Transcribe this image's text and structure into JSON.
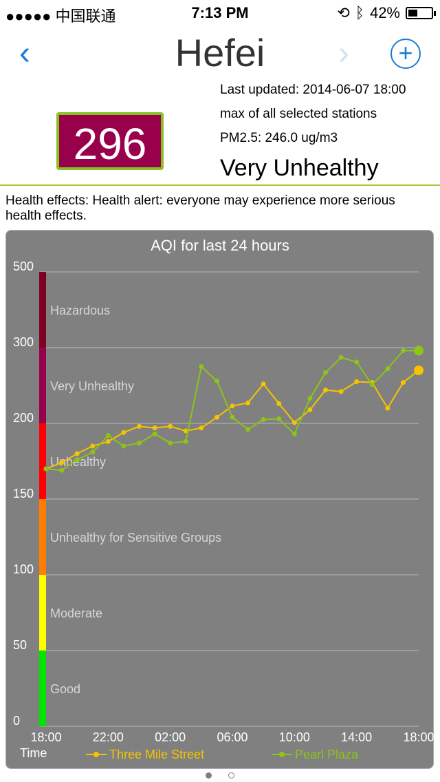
{
  "status_bar": {
    "carrier": "●●●●● 中国联通",
    "time": "7:13 PM",
    "battery": "42%",
    "battery_level": 0.42
  },
  "nav": {
    "back_icon": "chevron-left-icon",
    "title": "Hefei",
    "next_icon": "chevron-right-icon",
    "add_icon": "plus-circle-icon"
  },
  "summary": {
    "aqi": "296",
    "aqi_color": "#99004c",
    "last_updated": "Last updated: 2014-06-07 18:00",
    "station_note": "max of all selected stations",
    "pm25": "PM2.5: 246.0 ug/m3",
    "level": "Very Unhealthy"
  },
  "health": "Health effects: Health alert: everyone may experience more serious health effects.",
  "chart_data": {
    "type": "line",
    "title": "AQI for last 24 hours",
    "xlabel": "Time",
    "x_tick_labels": [
      "18:00",
      "22:00",
      "02:00",
      "06:00",
      "10:00",
      "14:00",
      "18:00"
    ],
    "y_tick_labels": [
      "0",
      "50",
      "100",
      "150",
      "200",
      "300",
      "500"
    ],
    "bands": [
      {
        "label": "Good",
        "from": 0,
        "to": 50,
        "color": "#00e400"
      },
      {
        "label": "Moderate",
        "from": 50,
        "to": 100,
        "color": "#ffff00"
      },
      {
        "label": "Unhealthy for Sensitive Groups",
        "from": 100,
        "to": 150,
        "color": "#ff7e00"
      },
      {
        "label": "Unhealthy",
        "from": 150,
        "to": 200,
        "color": "#ff0000"
      },
      {
        "label": "Very Unhealthy",
        "from": 200,
        "to": 300,
        "color": "#99004c"
      },
      {
        "label": "Hazardous",
        "from": 300,
        "to": 500,
        "color": "#7e0023"
      }
    ],
    "hours": 24,
    "series": [
      {
        "name": "Three Mile Street",
        "color": "#f5c400",
        "values": [
          170,
          174,
          180,
          185,
          188,
          194,
          198,
          197,
          198,
          195,
          197,
          208,
          223,
          227,
          252,
          226,
          201,
          218,
          244,
          242,
          255,
          254,
          220,
          254,
          270
        ]
      },
      {
        "name": "Pearl Plaza",
        "color": "#8cc418",
        "values": [
          170,
          169,
          176,
          181,
          192,
          185,
          187,
          193,
          187,
          188,
          275,
          256,
          208,
          196,
          205,
          206,
          193,
          233,
          267,
          287,
          281,
          251,
          272,
          296,
          296
        ]
      }
    ]
  },
  "pager": {
    "total": 2,
    "active": 0
  }
}
